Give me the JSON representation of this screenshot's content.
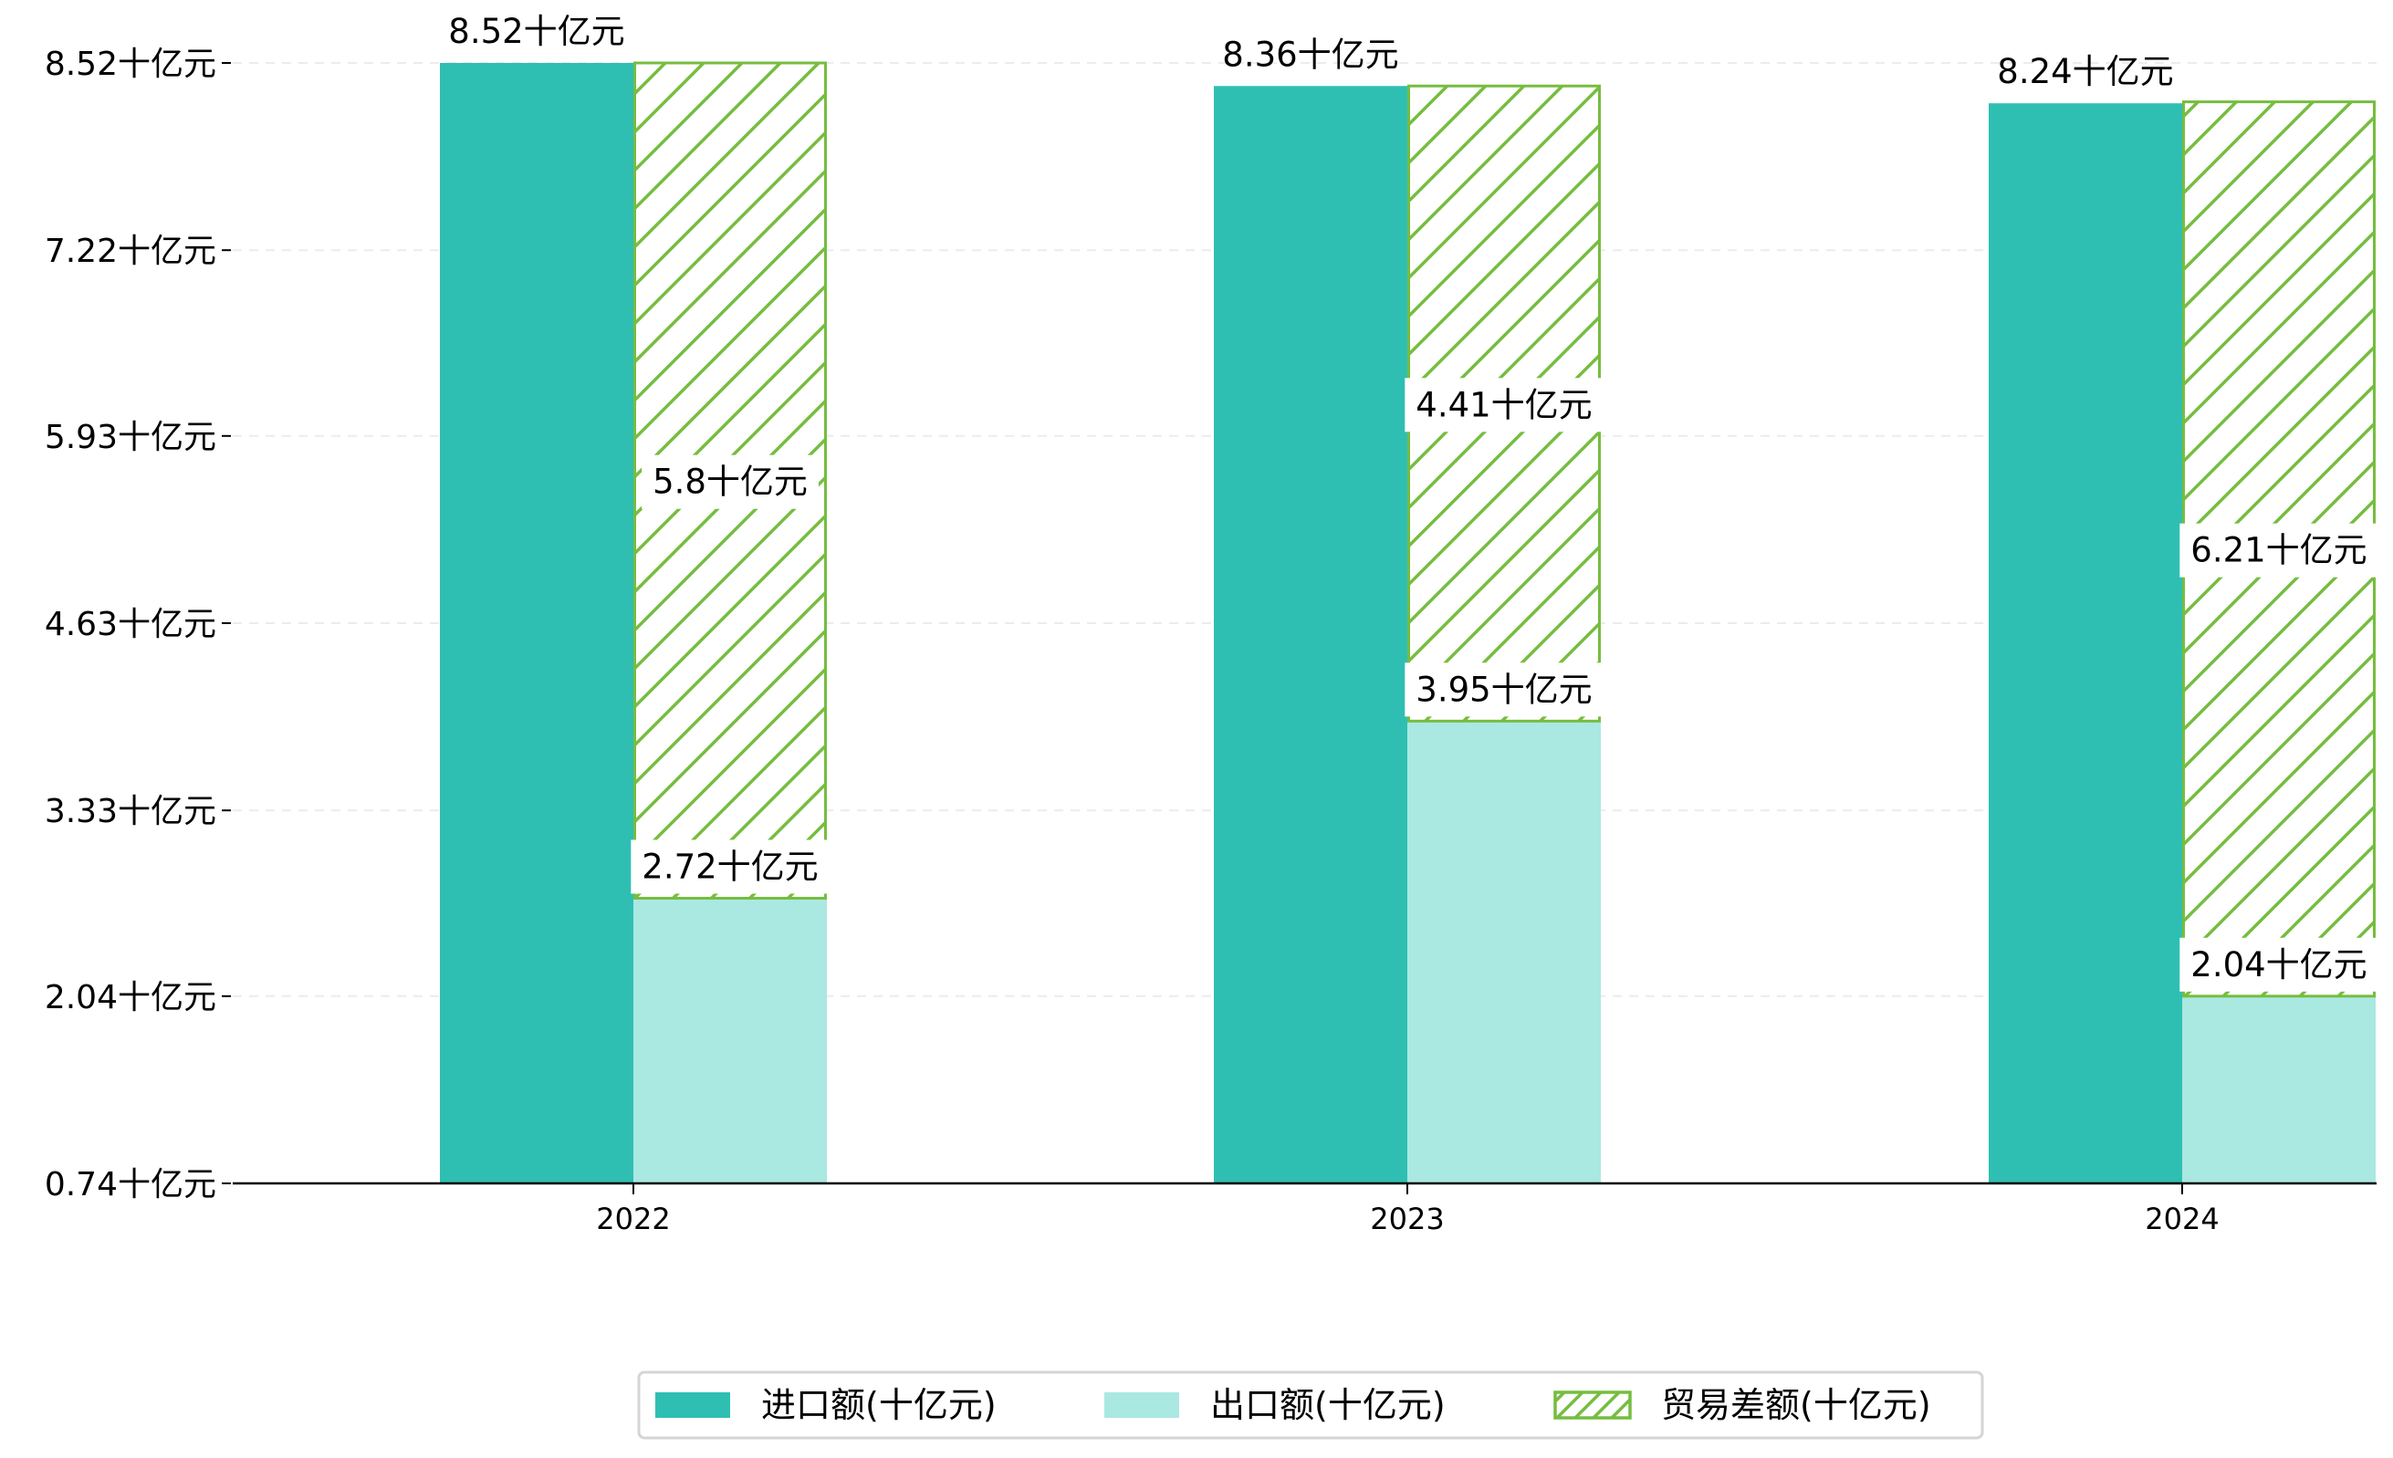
{
  "chart_data": {
    "type": "bar",
    "title": "",
    "xlabel": "",
    "ylabel": "",
    "unit_suffix": "十亿元",
    "categories": [
      "2022",
      "2023",
      "2024"
    ],
    "series": [
      {
        "name": "进口额(十亿元)",
        "values": [
          8.52,
          8.36,
          8.24
        ],
        "color": "#2fbfb2",
        "style": "solid"
      },
      {
        "name": "出口额(十亿元)",
        "values": [
          2.72,
          3.95,
          2.04
        ],
        "color": "#aae8e2",
        "style": "solid"
      },
      {
        "name": "贸易差额(十亿元)",
        "values": [
          5.8,
          4.41,
          6.21
        ],
        "color": "#76bd3f",
        "style": "hatched",
        "stacked_on": "出口额(十亿元)"
      }
    ],
    "data_labels": {
      "import": [
        "8.52十亿元",
        "8.36十亿元",
        "8.24十亿元"
      ],
      "export": [
        "2.72十亿元",
        "3.95十亿元",
        "2.04十亿元"
      ],
      "diff": [
        "5.8十亿元",
        "4.41十亿元",
        "6.21十亿元"
      ]
    },
    "yticks": [
      0.74,
      2.04,
      3.33,
      4.63,
      5.93,
      7.22,
      8.52
    ],
    "ytick_labels": [
      "0.74十亿元",
      "2.04十亿元",
      "3.33十亿元",
      "4.63十亿元",
      "5.93十亿元",
      "7.22十亿元",
      "8.52十亿元"
    ],
    "ylim": [
      0.74,
      8.52
    ],
    "grid": "horizontal dashed",
    "legend_position": "bottom-center"
  }
}
